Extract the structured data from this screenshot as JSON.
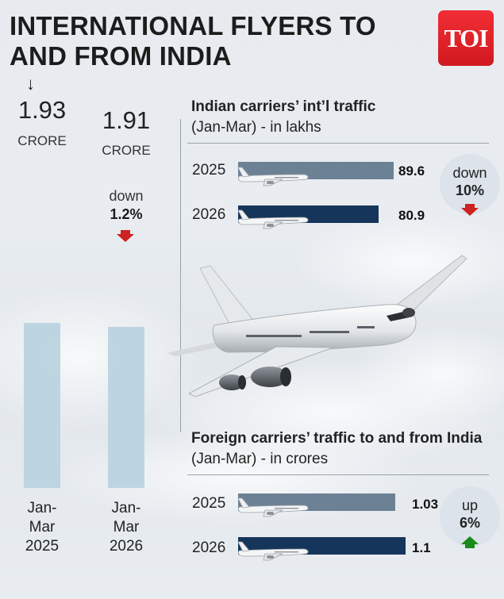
{
  "title": "INTERNATIONAL FLYERS TO AND FROM INDIA",
  "logo": "TOI",
  "colors": {
    "pillar": "#b9d3de",
    "bar_2025": "#6c8294",
    "bar_2026": "#15365a",
    "down_arrow": "#cc2222",
    "up_arrow": "#1a8a1a"
  },
  "chart_data": [
    {
      "type": "bar",
      "categories": [
        "Jan-Mar 2025",
        "Jan-Mar 2026"
      ],
      "values": [
        1.93,
        1.91
      ],
      "unit": "CRORE",
      "value_labels": [
        "1.93",
        "1.91"
      ],
      "change": {
        "direction": "down",
        "word": "down",
        "percent": "1.2%"
      }
    },
    {
      "type": "bar",
      "orientation": "horizontal",
      "title": "Indian carriers’ int’l traffic",
      "subtitle": "(Jan-Mar) - in lakhs",
      "categories": [
        "2025",
        "2026"
      ],
      "values": [
        89.6,
        80.9
      ],
      "value_labels": [
        "89.6",
        "80.9"
      ],
      "change": {
        "direction": "down",
        "word": "down",
        "percent": "10%"
      }
    },
    {
      "type": "bar",
      "orientation": "horizontal",
      "title_bold": "Foreign carriers’ traffic to and from India",
      "title_rest": " (Jan-Mar) - in crores",
      "categories": [
        "2025",
        "2026"
      ],
      "values": [
        1.03,
        1.1
      ],
      "value_labels": [
        "1.03",
        "1.1"
      ],
      "change": {
        "direction": "up",
        "word": "up",
        "percent": "6%"
      }
    }
  ],
  "pointer_glyph": "↓",
  "icons": [
    "down-arrow-icon",
    "up-arrow-icon",
    "plane-icon",
    "airplane-illustration"
  ]
}
